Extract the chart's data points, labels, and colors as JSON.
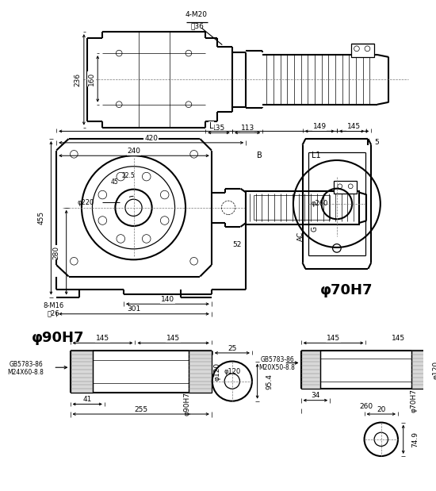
{
  "bg": "#ffffff",
  "lc": "#000000",
  "labels": {
    "4M20": "4-M20",
    "shen36": "深36",
    "L": "L",
    "420": "420",
    "240": "240",
    "225": "22.5",
    "45": "45",
    "phi220": "φ220",
    "455": "455",
    "280": "280",
    "52": "52",
    "140": "140",
    "301": "301",
    "B": "B",
    "L1": "L1",
    "AC": "AC",
    "G": "G",
    "8M16": "8-M16",
    "shen26": "深26",
    "149": "149",
    "145": "145",
    "5": "5",
    "phi260": "φ260",
    "phi70H7": "φ70H7",
    "phi90H7": "φ90H7",
    "phi120": "φ120",
    "GB_a": "GB5783-86",
    "M24": "M24X60-8.8",
    "GB_b": "GB5783-86",
    "M20": "M20X50-8.8",
    "41": "41",
    "255": "255",
    "phi90h7s": "φ90H7",
    "25": "25",
    "954": "95.4",
    "34": "34",
    "260": "260",
    "phi70h7s": "φ70H7",
    "20": "20",
    "749": "74.9",
    "236": "236",
    "160": "160",
    "135": "135",
    "113": "113"
  }
}
